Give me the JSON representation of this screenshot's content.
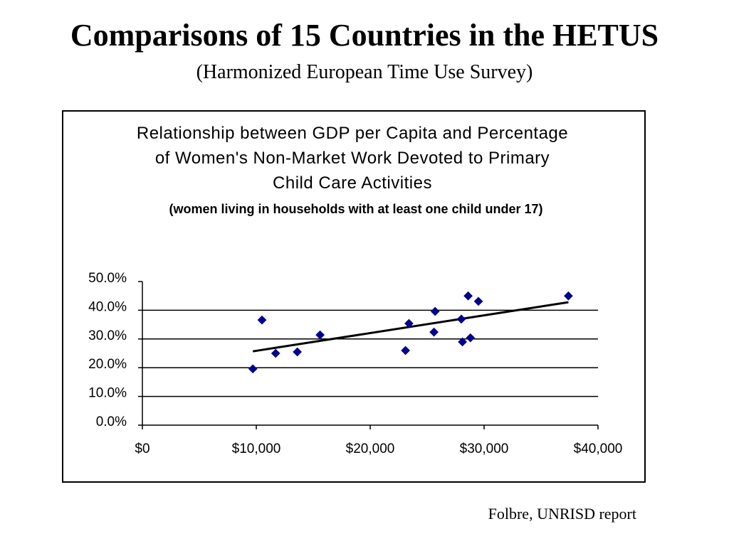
{
  "header": {
    "title": "Comparisons of 15 Countries in the HETUS",
    "subtitle": "(Harmonized European Time Use Survey)"
  },
  "chart_data": {
    "type": "scatter",
    "title": "Relationship between GDP per Capita and Percentage of Women's Non-Market Work Devoted to Primary Child Care Activities",
    "subtitle": "(women living in households with at least one child under 17)",
    "x": [
      9700,
      10500,
      11700,
      13600,
      15600,
      23100,
      23400,
      25700,
      25600,
      28000,
      28100,
      28800,
      28600,
      29500,
      37400
    ],
    "values": [
      19.6,
      36.6,
      25.0,
      25.5,
      31.4,
      26.0,
      35.4,
      39.6,
      32.4,
      36.9,
      29.0,
      30.4,
      45.0,
      43.1,
      45.0
    ],
    "color": "#00008b",
    "trendline": {
      "x": [
        9700,
        37400
      ],
      "values": [
        25.7,
        42.8
      ],
      "color": "#000000"
    },
    "xlim": [
      0,
      40000
    ],
    "xticks": [
      {
        "value": 0,
        "label": "$0"
      },
      {
        "value": 10000,
        "label": "$10,000"
      },
      {
        "value": 20000,
        "label": "$20,000"
      },
      {
        "value": 30000,
        "label": "$30,000"
      },
      {
        "value": 40000,
        "label": "$40,000"
      }
    ],
    "ylim": [
      0,
      50
    ],
    "yticks": [
      {
        "value": 0,
        "label": "0.0%"
      },
      {
        "value": 10,
        "label": "10.0%"
      },
      {
        "value": 20,
        "label": "20.0%"
      },
      {
        "value": 30,
        "label": "30.0%"
      },
      {
        "value": 40,
        "label": "40.0%"
      },
      {
        "value": 50,
        "label": "50.0%"
      }
    ],
    "grid": true
  },
  "footer": {
    "source": "Folbre, UNRISD report"
  }
}
